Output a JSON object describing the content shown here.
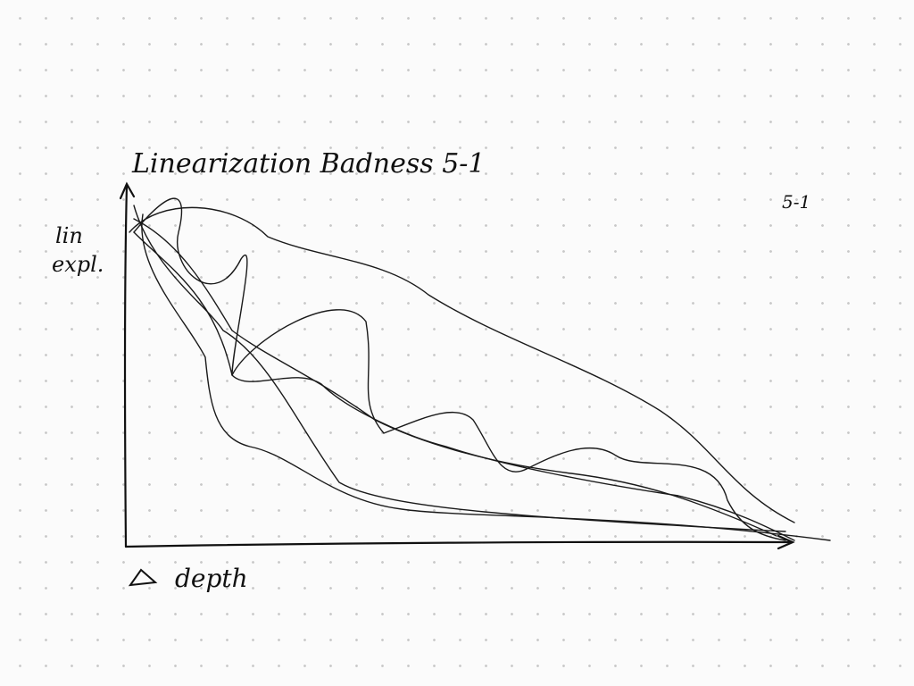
{
  "title": "Linearization Badness 5-1",
  "corner_note": "5-1",
  "y_label": [
    "lin",
    "expl."
  ],
  "x_label": "depth"
}
